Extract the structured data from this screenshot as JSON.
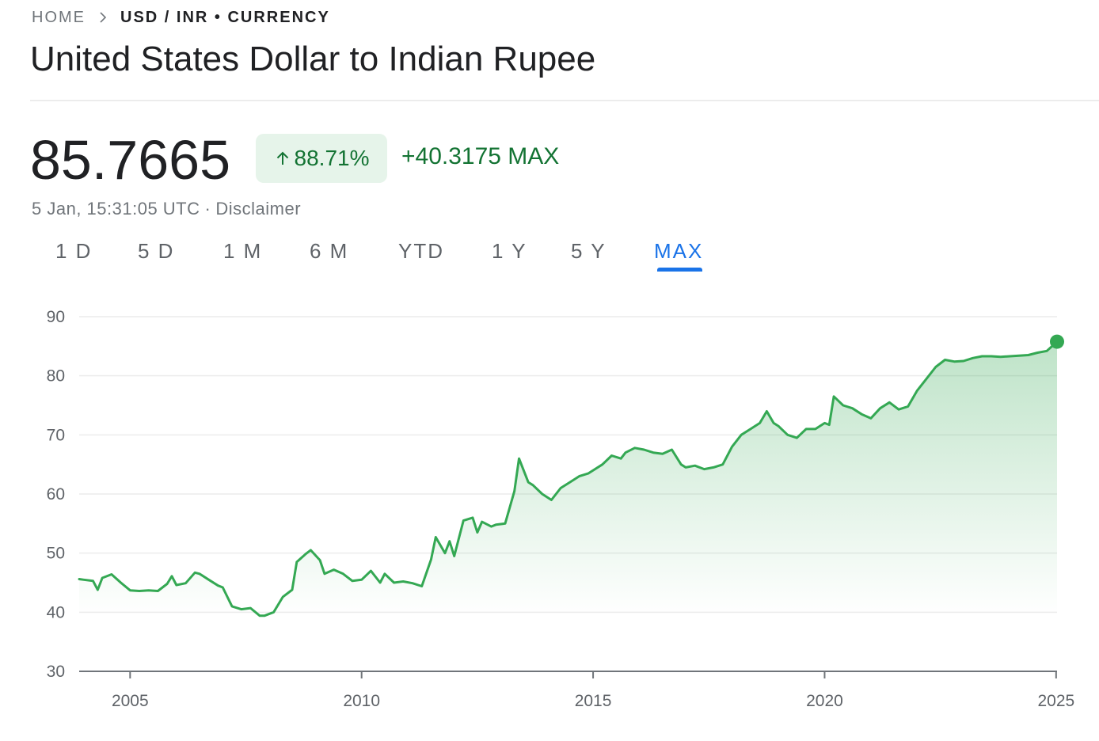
{
  "breadcrumb": {
    "home": "HOME",
    "current": "USD / INR • CURRENCY"
  },
  "title": "United States Dollar to Indian Rupee",
  "quote": {
    "price": "85.7665",
    "change_percent": "88.71%",
    "change_abs": "+40.3175 MAX",
    "timestamp": "5 Jan, 15:31:05 UTC",
    "separator": "·",
    "disclaimer": "Disclaimer",
    "direction_icon": "arrow-up-icon"
  },
  "tabs": [
    {
      "label": "1 D"
    },
    {
      "label": "5 D"
    },
    {
      "label": "1 M"
    },
    {
      "label": "6 M"
    },
    {
      "label": "YTD"
    },
    {
      "label": "1 Y"
    },
    {
      "label": "5 Y"
    },
    {
      "label": "MAX",
      "active": true
    }
  ],
  "colors": {
    "up": "#137333",
    "line": "#34a853",
    "chip_bg": "#e6f4ea",
    "active_tab": "#1a73e8",
    "grid": "#ececec",
    "axis": "#70757a"
  },
  "chart_data": {
    "type": "area",
    "title": "",
    "xlabel": "",
    "ylabel": "",
    "x_ticks": [
      2005,
      2010,
      2015,
      2020,
      2025
    ],
    "y_ticks": [
      30,
      40,
      50,
      60,
      70,
      80,
      90
    ],
    "xlim": [
      2003.9,
      2025.02
    ],
    "ylim": [
      30,
      90
    ],
    "grid": true,
    "legend": "none",
    "series": [
      {
        "x": [
          2003.9,
          2004.0,
          2004.2,
          2004.3,
          2004.4,
          2004.6,
          2004.8,
          2005.0,
          2005.2,
          2005.4,
          2005.6,
          2005.8,
          2005.9,
          2006.0,
          2006.2,
          2006.4,
          2006.5,
          2006.7,
          2006.9,
          2007.0,
          2007.2,
          2007.4,
          2007.6,
          2007.8,
          2007.9,
          2008.1,
          2008.3,
          2008.5,
          2008.6,
          2008.8,
          2008.9,
          2009.1,
          2009.2,
          2009.4,
          2009.6,
          2009.8,
          2010.0,
          2010.2,
          2010.4,
          2010.5,
          2010.7,
          2010.9,
          2011.1,
          2011.3,
          2011.5,
          2011.6,
          2011.8,
          2011.9,
          2012.0,
          2012.2,
          2012.4,
          2012.5,
          2012.6,
          2012.8,
          2012.9,
          2013.1,
          2013.3,
          2013.4,
          2013.6,
          2013.7,
          2013.9,
          2014.1,
          2014.3,
          2014.5,
          2014.7,
          2014.9,
          2015.0,
          2015.2,
          2015.4,
          2015.6,
          2015.7,
          2015.9,
          2016.1,
          2016.3,
          2016.5,
          2016.7,
          2016.9,
          2017.0,
          2017.2,
          2017.4,
          2017.6,
          2017.8,
          2018.0,
          2018.2,
          2018.4,
          2018.6,
          2018.75,
          2018.9,
          2019.0,
          2019.2,
          2019.4,
          2019.6,
          2019.8,
          2020.0,
          2020.1,
          2020.2,
          2020.4,
          2020.6,
          2020.8,
          2021.0,
          2021.2,
          2021.4,
          2021.6,
          2021.8,
          2022.0,
          2022.2,
          2022.4,
          2022.6,
          2022.8,
          2023.0,
          2023.2,
          2023.4,
          2023.6,
          2023.8,
          2024.0,
          2024.2,
          2024.4,
          2024.6,
          2024.8,
          2025.02
        ],
        "values": [
          45.6,
          45.5,
          45.3,
          43.8,
          45.8,
          46.4,
          45.0,
          43.7,
          43.6,
          43.7,
          43.6,
          44.8,
          46.1,
          44.6,
          44.9,
          46.7,
          46.5,
          45.5,
          44.5,
          44.2,
          41.0,
          40.5,
          40.7,
          39.4,
          39.4,
          40.0,
          42.6,
          43.8,
          48.5,
          49.9,
          50.5,
          48.8,
          46.5,
          47.2,
          46.5,
          45.3,
          45.5,
          47.0,
          45.0,
          46.5,
          45.0,
          45.2,
          44.9,
          44.4,
          48.9,
          52.7,
          50.0,
          52.0,
          49.5,
          55.5,
          56.0,
          53.5,
          55.3,
          54.5,
          54.8,
          55.0,
          60.5,
          66.0,
          62.0,
          61.5,
          60.0,
          59.0,
          61.0,
          62.0,
          63.0,
          63.5,
          64.0,
          65.0,
          66.5,
          66.0,
          67.0,
          67.8,
          67.5,
          67.0,
          66.8,
          67.5,
          65.0,
          64.5,
          64.8,
          64.2,
          64.5,
          65.0,
          68.0,
          70.0,
          71.0,
          72.0,
          74.0,
          72.0,
          71.5,
          70.0,
          69.5,
          71.0,
          71.0,
          72.0,
          71.7,
          76.5,
          75.0,
          74.5,
          73.5,
          72.8,
          74.5,
          75.5,
          74.3,
          74.8,
          77.5,
          79.5,
          81.5,
          82.7,
          82.4,
          82.5,
          83.0,
          83.3,
          83.3,
          83.2,
          83.3,
          83.4,
          83.5,
          83.9,
          84.2,
          85.7665
        ]
      }
    ]
  }
}
